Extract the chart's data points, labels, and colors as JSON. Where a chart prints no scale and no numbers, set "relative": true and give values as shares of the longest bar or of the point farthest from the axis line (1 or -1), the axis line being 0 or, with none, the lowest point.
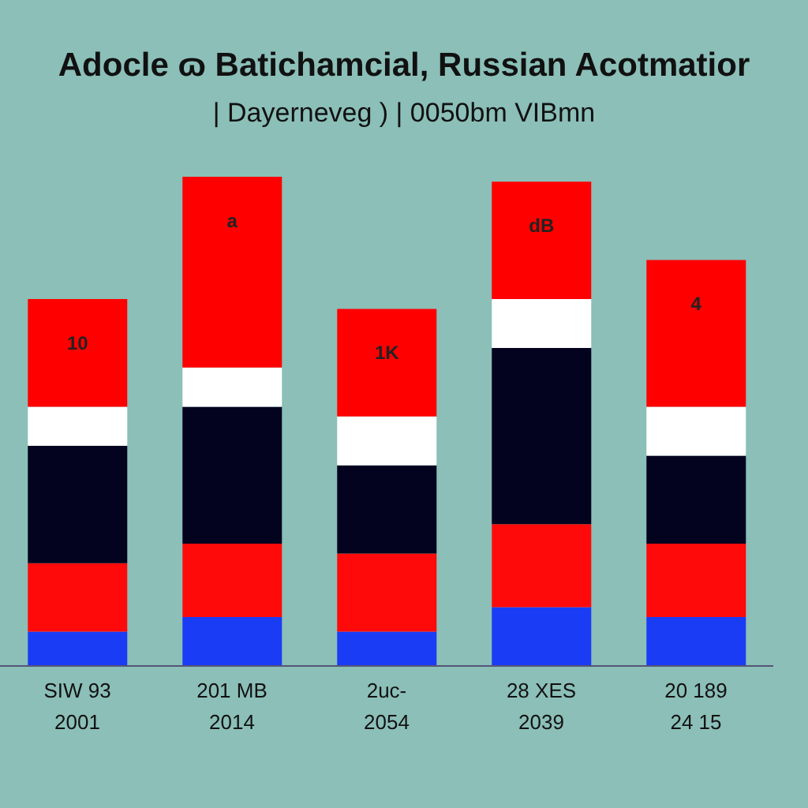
{
  "chart_data": {
    "type": "bar",
    "title": "Adocle ɷ Batichamcial, Russian Acotmatior",
    "subtitle": "| Dayerneveg ) | 0050bm VIBmn",
    "stacked": true,
    "relative": true,
    "categories": [
      "SIW 93\n2001",
      "201 MB\n2014",
      "2uc-\n2054",
      "28 XES\n2039",
      "20 189\n24 15"
    ],
    "series": [
      {
        "color": "#1a3cf5",
        "values": [
          0.07,
          0.1,
          0.07,
          0.12,
          0.1
        ]
      },
      {
        "color": "#ff0a0a",
        "values": [
          0.14,
          0.15,
          0.16,
          0.17,
          0.15
        ]
      },
      {
        "color": "#03031f",
        "values": [
          0.24,
          0.28,
          0.18,
          0.36,
          0.18
        ]
      },
      {
        "color": "#ffffff",
        "values": [
          0.08,
          0.08,
          0.1,
          0.1,
          0.1
        ]
      },
      {
        "color": "#ff0000",
        "values": [
          0.22,
          0.39,
          0.22,
          0.24,
          0.3
        ]
      }
    ],
    "annotations": [
      "10",
      "a",
      "1K",
      "dB",
      "4"
    ]
  }
}
